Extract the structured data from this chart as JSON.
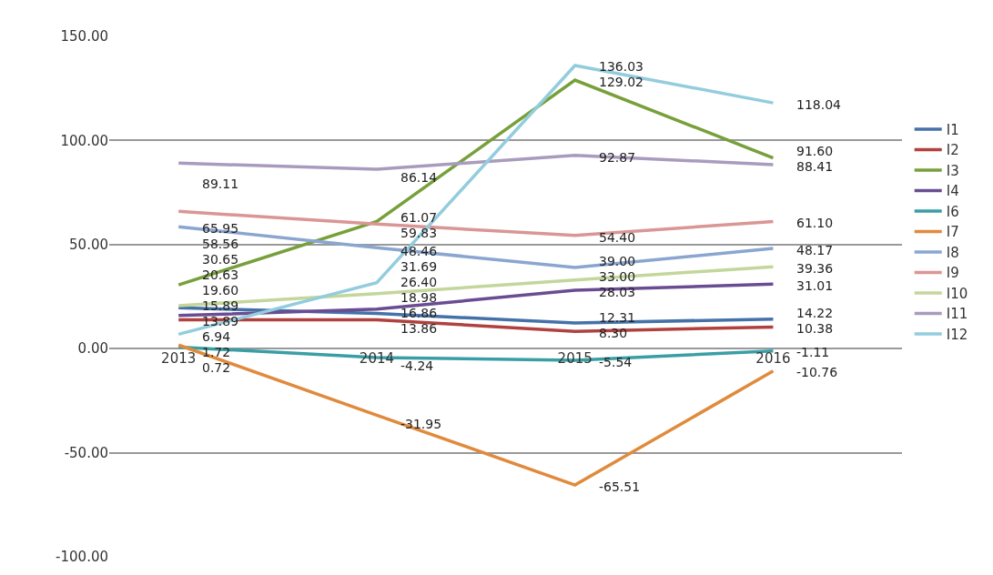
{
  "chart_data": {
    "type": "line",
    "categories": [
      "2013",
      "2014",
      "2015",
      "2016"
    ],
    "series": [
      {
        "name": "I1",
        "color": "#4472a8",
        "values": [
          19.6,
          16.86,
          12.31,
          14.22
        ]
      },
      {
        "name": "I2",
        "color": "#b0413e",
        "values": [
          13.89,
          13.86,
          8.3,
          10.38
        ]
      },
      {
        "name": "I3",
        "color": "#77a03b",
        "values": [
          30.65,
          61.07,
          129.02,
          91.6
        ]
      },
      {
        "name": "I4",
        "color": "#6a4c93",
        "values": [
          15.89,
          18.98,
          28.03,
          31.01
        ]
      },
      {
        "name": "I6",
        "color": "#3a9ea5",
        "values": [
          0.72,
          -4.24,
          -5.54,
          -1.11
        ]
      },
      {
        "name": "I7",
        "color": "#e08a3c",
        "values": [
          1.72,
          -31.95,
          -65.51,
          -10.76
        ]
      },
      {
        "name": "I8",
        "color": "#8aa6d0",
        "values": [
          58.56,
          48.46,
          39.0,
          48.17
        ]
      },
      {
        "name": "I9",
        "color": "#d99694",
        "values": [
          65.95,
          59.83,
          54.4,
          61.1
        ]
      },
      {
        "name": "I10",
        "color": "#c3d69b",
        "values": [
          20.63,
          26.4,
          33.0,
          39.36
        ]
      },
      {
        "name": "I11",
        "color": "#a99bbd",
        "values": [
          89.11,
          86.14,
          92.87,
          88.41
        ]
      },
      {
        "name": "I12",
        "color": "#93cddd",
        "values": [
          6.94,
          31.69,
          136.03,
          118.04
        ]
      }
    ],
    "ylim": [
      -100,
      150
    ],
    "yticks": [
      {
        "value": -100,
        "label": "-100.00"
      },
      {
        "value": -50,
        "label": "-50.00"
      },
      {
        "value": 0,
        "label": "0.00"
      },
      {
        "value": 50,
        "label": "50.00"
      },
      {
        "value": 100,
        "label": "100.00"
      },
      {
        "value": 150,
        "label": "150.00"
      }
    ],
    "value_labels": [
      [
        "19.60",
        "16.86",
        "12.31",
        "14.22"
      ],
      [
        "13.89",
        "13.86",
        "8.30",
        "10.38"
      ],
      [
        "30.65",
        "61.07",
        "129.02",
        "91.60"
      ],
      [
        "15.89",
        "18.98",
        "28.03",
        "31.01"
      ],
      [
        "0.72",
        "-4.24",
        "-5.54",
        "-1.11"
      ],
      [
        "1.72",
        "-31.95",
        "-65.51",
        "-10.76"
      ],
      [
        "58.56",
        "48.46",
        "39.00",
        "48.17"
      ],
      [
        "65.95",
        "59.83",
        "54.40",
        "61.10"
      ],
      [
        "20.63",
        "26.40",
        "33.00",
        "39.36"
      ],
      [
        "89.11",
        "86.14",
        "92.87",
        "88.41"
      ],
      [
        "6.94",
        "31.69",
        "136.03",
        "118.04"
      ]
    ],
    "grid": "y",
    "legend": "right",
    "marker": "none",
    "line_style": "solid"
  }
}
